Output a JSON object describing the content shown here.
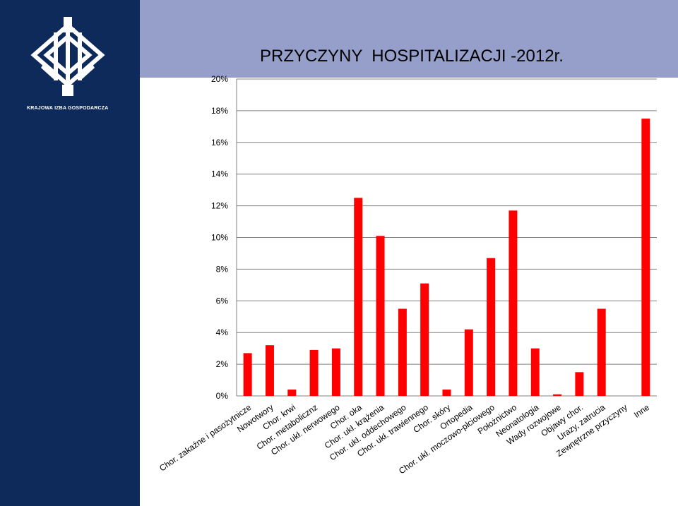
{
  "org": {
    "name": "KRAJOWA IZBA GOSPODARCZA"
  },
  "colors": {
    "sidebar": "#0d2a5a",
    "topband": "#969fc9",
    "bar": "#ff0000",
    "grid": "#808080"
  },
  "chart_data": {
    "type": "bar",
    "title": "PRZYCZYNY  HOSPITALIZACJI -2012r.",
    "categories": [
      "Chor. zakaźne i pasożytnicze",
      "Nowotwory",
      "Chor. krwi",
      "Chor. metabolicznz",
      "Chor. ukł. nerwowego",
      "Chor. oka",
      "Chor. ukł. krążenia",
      "Chor. ukł. oddechowego",
      "Chor. ukł. trawiennego",
      "Chor. skóry",
      "Ortopedia",
      "Chor. ukł. moczowo-płciowego",
      "Położnictwo",
      "Neonatologia",
      "Wady rozwojowe",
      "Objawy chor.",
      "Urazy, zatrucia",
      "Zewnętrzne przyczyny",
      "Inne"
    ],
    "values": [
      2.7,
      3.2,
      0.4,
      2.9,
      3.0,
      12.5,
      10.1,
      5.5,
      7.1,
      0.4,
      4.2,
      8.7,
      11.7,
      3.0,
      0.1,
      1.5,
      5.5,
      0.0,
      17.5
    ],
    "ylim": [
      0,
      20
    ],
    "yticks": [
      "0%",
      "2%",
      "4%",
      "6%",
      "8%",
      "10%",
      "12%",
      "14%",
      "16%",
      "18%",
      "20%"
    ],
    "grid": true,
    "legend": "none"
  }
}
